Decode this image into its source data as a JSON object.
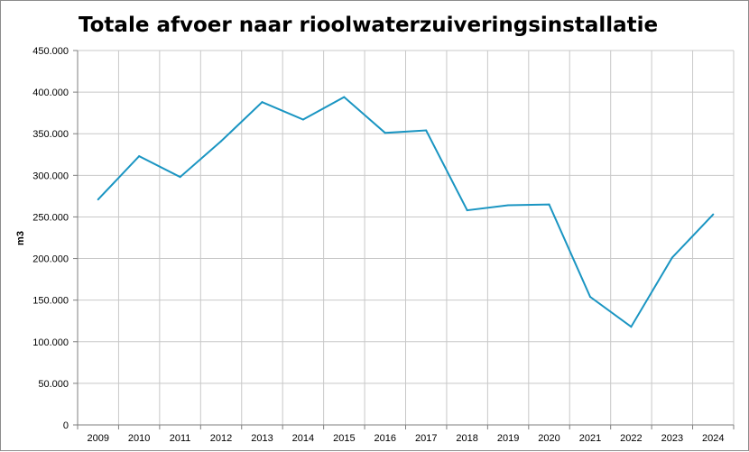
{
  "chart_data": {
    "type": "line",
    "title": "Totale afvoer naar rioolwaterzuiveringsinstallatie",
    "xlabel": "",
    "ylabel": "m3",
    "categories": [
      "2009",
      "2010",
      "2011",
      "2012",
      "2013",
      "2014",
      "2015",
      "2016",
      "2017",
      "2018",
      "2019",
      "2020",
      "2021",
      "2022",
      "2023",
      "2024"
    ],
    "series": [
      {
        "values": [
          271000,
          323000,
          298000,
          341000,
          388000,
          367000,
          394000,
          351000,
          354000,
          258000,
          264000,
          265000,
          154000,
          118000,
          201000,
          253000
        ]
      }
    ],
    "y_ticks": [
      "0",
      "50.000",
      "100.000",
      "150.000",
      "200.000",
      "250.000",
      "300.000",
      "350.000",
      "400.000",
      "450.000"
    ],
    "ylim": [
      0,
      450000
    ],
    "grid": true,
    "legend": "none",
    "line_color": "#1a95c2"
  }
}
